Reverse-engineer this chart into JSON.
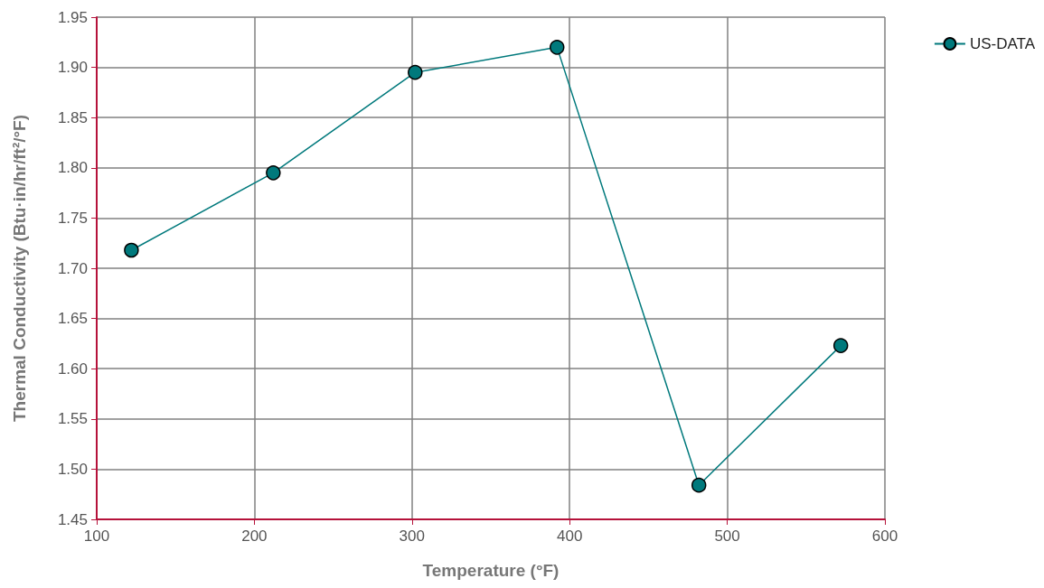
{
  "chart_data": {
    "type": "line",
    "xlabel": "Temperature (°F)",
    "ylabel": "Thermal Conductivity (Btu·in/hr/ft²/°F)",
    "x": [
      122,
      212,
      302,
      392,
      482,
      572
    ],
    "series": [
      {
        "name": "US-DATA",
        "color": "#00797c",
        "values": [
          1.718,
          1.795,
          1.895,
          1.92,
          1.484,
          1.623
        ]
      }
    ],
    "xlim": [
      100,
      600
    ],
    "xticks": [
      100,
      200,
      300,
      400,
      500,
      600
    ],
    "ylim": [
      1.45,
      1.95
    ],
    "yticks": [
      1.45,
      {
        "value": 1.5,
        "label": "1.50"
      },
      1.55,
      {
        "value": 1.6,
        "label": "1.60"
      },
      1.65,
      {
        "value": 1.7,
        "label": "1.70"
      },
      1.75,
      {
        "value": 1.8,
        "label": "1.80"
      },
      1.85,
      {
        "value": 1.9,
        "label": "1.90"
      },
      1.95
    ],
    "grid": true,
    "legend": "top right",
    "marker": "circle",
    "line_style": "solid"
  }
}
